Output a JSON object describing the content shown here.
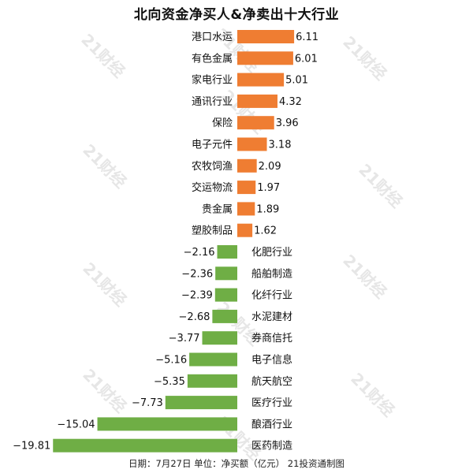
{
  "chart_data": {
    "type": "bar",
    "orientation": "horizontal",
    "title": "北向资金净买人&净卖出十大行业",
    "footer": "日期：7月27日 单位：净买额（亿元） 21投资通制图",
    "watermark": "21财经",
    "colors": {
      "buy": "#ef7d32",
      "sell": "#6fae45"
    },
    "categories": [
      "港口水运",
      "有色金属",
      "家电行业",
      "通讯行业",
      "保险",
      "电子元件",
      "农牧饲渔",
      "交运物流",
      "贵金属",
      "塑胶制品",
      "化肥行业",
      "船舶制造",
      "化纤行业",
      "水泥建材",
      "券商信托",
      "电子信息",
      "航天航空",
      "医疗行业",
      "酿酒行业",
      "医药制造"
    ],
    "value_labels": [
      "6.11",
      "6.01",
      "5.01",
      "4.32",
      "3.96",
      "3.18",
      "2.09",
      "1.97",
      "1.89",
      "1.62",
      "−2.16",
      "−2.36",
      "−2.39",
      "−2.68",
      "−3.77",
      "−5.16",
      "−5.35",
      "−7.73",
      "−15.04",
      "−19.81"
    ],
    "values": [
      6.11,
      6.01,
      5.01,
      4.32,
      3.96,
      3.18,
      2.09,
      1.97,
      1.89,
      1.62,
      -2.16,
      -2.36,
      -2.39,
      -2.68,
      -3.77,
      -5.16,
      -5.35,
      -7.73,
      -15.04,
      -19.81
    ]
  }
}
